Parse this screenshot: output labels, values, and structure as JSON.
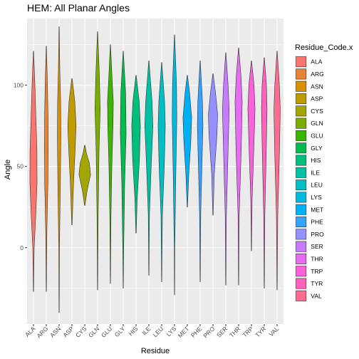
{
  "chart_data": {
    "type": "violin",
    "title": "HEM: All Planar Angles",
    "xlabel": "Residue",
    "ylabel": "Angle",
    "ylim": [
      -47,
      141
    ],
    "yticks": [
      0,
      50,
      100
    ],
    "grid": true,
    "legend": {
      "title": "Residue_Code.x",
      "placement": "right"
    },
    "categories": [
      "ALA",
      "ARG",
      "ASN",
      "ASP",
      "CYS",
      "GLN",
      "GLU",
      "GLY",
      "HIS",
      "ILE",
      "LEU",
      "LYS",
      "MET",
      "PHE",
      "PRO",
      "SER",
      "THR",
      "TRP",
      "TYR",
      "VAL"
    ],
    "colors": [
      "#F8766D",
      "#EA8331",
      "#D89000",
      "#C09B00",
      "#A3A500",
      "#7CAE00",
      "#39B600",
      "#00BB4E",
      "#00BF7D",
      "#00C1A3",
      "#00BFC4",
      "#00BAE0",
      "#00B0F6",
      "#35A2FF",
      "#9590FF",
      "#C77CFF",
      "#E76BF3",
      "#FA62DB",
      "#FF62BC",
      "#FF6C91"
    ],
    "series": [
      {
        "name": "ALA",
        "min": -27,
        "max": 121,
        "profile": [
          [
            -27,
            0.02
          ],
          [
            0,
            0.12
          ],
          [
            20,
            0.4
          ],
          [
            40,
            0.62
          ],
          [
            60,
            0.6
          ],
          [
            80,
            0.42
          ],
          [
            100,
            0.25
          ],
          [
            121,
            0.02
          ]
        ]
      },
      {
        "name": "ARG",
        "min": -27,
        "max": 124,
        "profile": [
          [
            -27,
            0.02
          ],
          [
            10,
            0.1
          ],
          [
            40,
            0.28
          ],
          [
            60,
            0.32
          ],
          [
            80,
            0.3
          ],
          [
            100,
            0.2
          ],
          [
            124,
            0.02
          ]
        ]
      },
      {
        "name": "ASN",
        "min": -40,
        "max": 136,
        "profile": [
          [
            -40,
            0.02
          ],
          [
            0,
            0.06
          ],
          [
            40,
            0.22
          ],
          [
            70,
            0.3
          ],
          [
            90,
            0.26
          ],
          [
            110,
            0.12
          ],
          [
            136,
            0.02
          ]
        ]
      },
      {
        "name": "ASP",
        "min": 14,
        "max": 104,
        "profile": [
          [
            14,
            0.03
          ],
          [
            40,
            0.28
          ],
          [
            60,
            0.55
          ],
          [
            75,
            0.72
          ],
          [
            90,
            0.5
          ],
          [
            104,
            0.04
          ]
        ]
      },
      {
        "name": "CYS",
        "min": 26,
        "max": 63,
        "profile": [
          [
            26,
            0.04
          ],
          [
            35,
            0.4
          ],
          [
            45,
            1.0
          ],
          [
            52,
            0.8
          ],
          [
            58,
            0.3
          ],
          [
            63,
            0.04
          ]
        ]
      },
      {
        "name": "GLN",
        "min": -26,
        "max": 133,
        "profile": [
          [
            -26,
            0.02
          ],
          [
            20,
            0.1
          ],
          [
            60,
            0.25
          ],
          [
            85,
            0.45
          ],
          [
            105,
            0.32
          ],
          [
            133,
            0.02
          ]
        ]
      },
      {
        "name": "GLU",
        "min": -22,
        "max": 125,
        "profile": [
          [
            -22,
            0.02
          ],
          [
            20,
            0.1
          ],
          [
            50,
            0.25
          ],
          [
            75,
            0.45
          ],
          [
            90,
            0.5
          ],
          [
            105,
            0.28
          ],
          [
            125,
            0.02
          ]
        ]
      },
      {
        "name": "GLY",
        "min": -25,
        "max": 121,
        "profile": [
          [
            -25,
            0.02
          ],
          [
            0,
            0.08
          ],
          [
            40,
            0.25
          ],
          [
            70,
            0.5
          ],
          [
            95,
            0.42
          ],
          [
            121,
            0.02
          ]
        ]
      },
      {
        "name": "HIS",
        "min": 9,
        "max": 106,
        "profile": [
          [
            9,
            0.03
          ],
          [
            30,
            0.2
          ],
          [
            55,
            0.6
          ],
          [
            75,
            0.75
          ],
          [
            90,
            0.55
          ],
          [
            106,
            0.03
          ]
        ]
      },
      {
        "name": "ILE",
        "min": -17,
        "max": 115,
        "profile": [
          [
            -17,
            0.02
          ],
          [
            20,
            0.1
          ],
          [
            50,
            0.4
          ],
          [
            75,
            0.7
          ],
          [
            90,
            0.55
          ],
          [
            115,
            0.02
          ]
        ]
      },
      {
        "name": "LEU",
        "min": -21,
        "max": 114,
        "profile": [
          [
            -21,
            0.02
          ],
          [
            20,
            0.12
          ],
          [
            50,
            0.45
          ],
          [
            75,
            0.62
          ],
          [
            90,
            0.5
          ],
          [
            114,
            0.02
          ]
        ]
      },
      {
        "name": "LYS",
        "min": -29,
        "max": 131,
        "profile": [
          [
            -29,
            0.02
          ],
          [
            0,
            0.05
          ],
          [
            40,
            0.2
          ],
          [
            80,
            0.4
          ],
          [
            100,
            0.35
          ],
          [
            131,
            0.02
          ]
        ]
      },
      {
        "name": "MET",
        "min": 25,
        "max": 106,
        "profile": [
          [
            25,
            0.03
          ],
          [
            45,
            0.25
          ],
          [
            65,
            0.6
          ],
          [
            80,
            0.75
          ],
          [
            95,
            0.4
          ],
          [
            106,
            0.03
          ]
        ]
      },
      {
        "name": "PHE",
        "min": -21,
        "max": 115,
        "profile": [
          [
            -21,
            0.02
          ],
          [
            20,
            0.1
          ],
          [
            50,
            0.3
          ],
          [
            75,
            0.48
          ],
          [
            90,
            0.4
          ],
          [
            115,
            0.02
          ]
        ]
      },
      {
        "name": "PRO",
        "min": 20,
        "max": 107,
        "profile": [
          [
            20,
            0.03
          ],
          [
            45,
            0.22
          ],
          [
            70,
            0.7
          ],
          [
            82,
            0.8
          ],
          [
            95,
            0.45
          ],
          [
            107,
            0.03
          ]
        ]
      },
      {
        "name": "SER",
        "min": -23,
        "max": 120,
        "profile": [
          [
            -23,
            0.02
          ],
          [
            20,
            0.1
          ],
          [
            60,
            0.4
          ],
          [
            85,
            0.58
          ],
          [
            100,
            0.4
          ],
          [
            120,
            0.02
          ]
        ]
      },
      {
        "name": "THR",
        "min": -23,
        "max": 123,
        "profile": [
          [
            -23,
            0.02
          ],
          [
            20,
            0.1
          ],
          [
            60,
            0.45
          ],
          [
            90,
            0.62
          ],
          [
            105,
            0.42
          ],
          [
            123,
            0.02
          ]
        ]
      },
      {
        "name": "TRP",
        "min": -2,
        "max": 115,
        "profile": [
          [
            -2,
            0.02
          ],
          [
            30,
            0.12
          ],
          [
            60,
            0.4
          ],
          [
            85,
            0.62
          ],
          [
            100,
            0.45
          ],
          [
            115,
            0.02
          ]
        ]
      },
      {
        "name": "TYR",
        "min": -25,
        "max": 117,
        "profile": [
          [
            -25,
            0.02
          ],
          [
            20,
            0.1
          ],
          [
            60,
            0.35
          ],
          [
            85,
            0.48
          ],
          [
            100,
            0.38
          ],
          [
            117,
            0.02
          ]
        ]
      },
      {
        "name": "VAL",
        "min": -26,
        "max": 121,
        "profile": [
          [
            -26,
            0.02
          ],
          [
            20,
            0.12
          ],
          [
            60,
            0.42
          ],
          [
            85,
            0.55
          ],
          [
            100,
            0.4
          ],
          [
            121,
            0.02
          ]
        ]
      }
    ]
  }
}
